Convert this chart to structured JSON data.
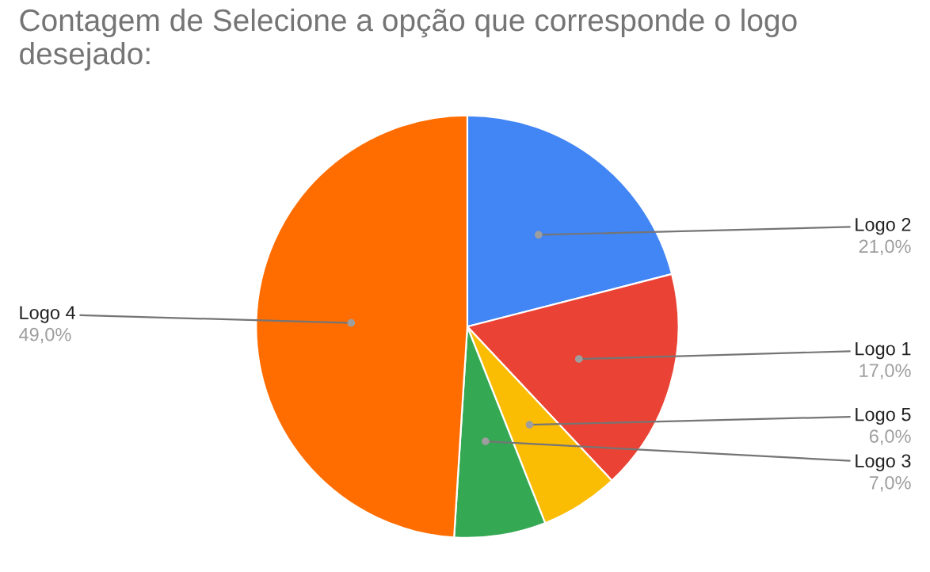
{
  "chart_data": {
    "type": "pie",
    "title": "Contagem de Selecione a opção que corresponde o logo desejado:",
    "categories": [
      "Logo 2",
      "Logo 1",
      "Logo 5",
      "Logo 3",
      "Logo 4"
    ],
    "values": [
      21,
      17,
      6,
      7,
      49
    ],
    "colors": [
      "#4285f4",
      "#ea4335",
      "#fbbc04",
      "#34a853",
      "#ff6d01"
    ],
    "value_labels": [
      "21,0%",
      "17,0%",
      "6,0%",
      "7,0%",
      "49,0%"
    ],
    "legend": false
  }
}
